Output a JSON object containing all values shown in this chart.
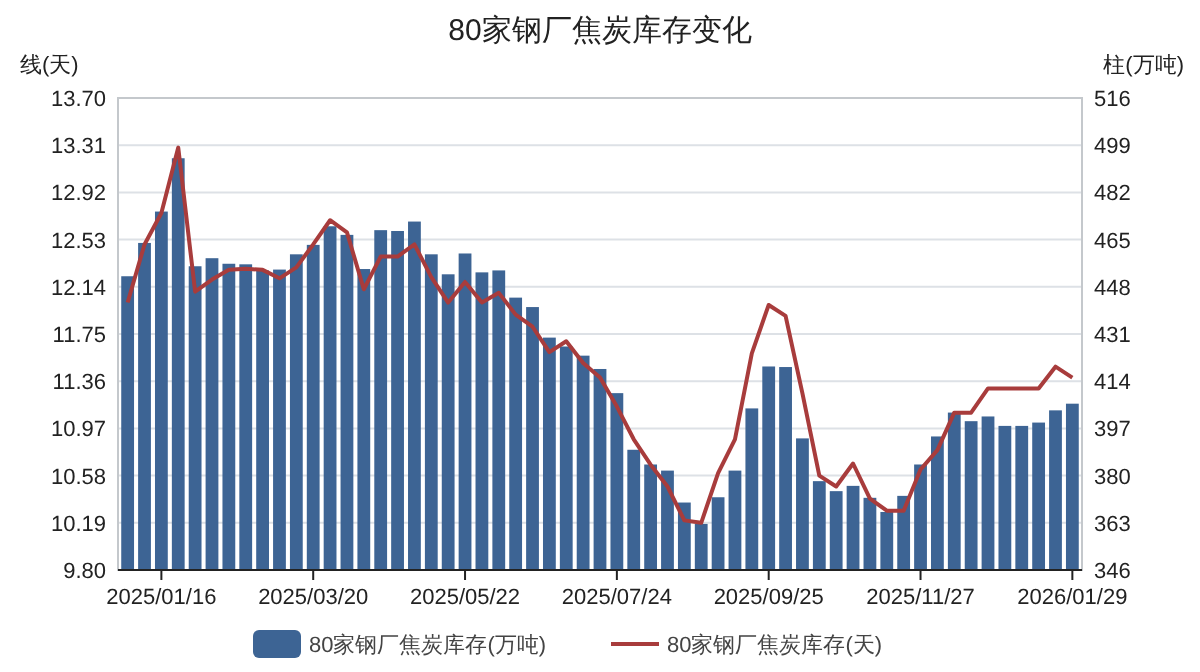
{
  "chart_data": {
    "type": "bar",
    "title": "80家钢厂焦炭库存变化",
    "ylabel": "线(天)",
    "y2label": "柱(万吨)",
    "x": [
      "2025-01-02",
      "2025-01-09",
      "2025-01-16",
      "2025-01-23",
      "2025-01-30",
      "2025-02-06",
      "2025-02-13",
      "2025-02-20",
      "2025-02-27",
      "2025-03-06",
      "2025-03-13",
      "2025-03-20",
      "2025-03-27",
      "2025-04-03",
      "2025-04-10",
      "2025-04-17",
      "2025-04-24",
      "2025-05-01",
      "2025-05-08",
      "2025-05-15",
      "2025-05-22",
      "2025-05-29",
      "2025-06-05",
      "2025-06-12",
      "2025-06-19",
      "2025-06-26",
      "2025-07-03",
      "2025-07-10",
      "2025-07-17",
      "2025-07-24",
      "2025-07-31",
      "2025-08-07",
      "2025-08-14",
      "2025-08-21",
      "2025-08-28",
      "2025-09-04",
      "2025-09-11",
      "2025-09-18",
      "2025-09-25",
      "2025-10-02",
      "2025-10-09",
      "2025-10-16",
      "2025-10-23",
      "2025-10-30",
      "2025-11-06",
      "2025-11-13",
      "2025-11-20",
      "2025-11-27",
      "2025-12-04",
      "2025-12-11",
      "2025-12-18",
      "2025-12-25",
      "2026-01-01",
      "2026-01-08",
      "2026-01-15",
      "2026-01-22",
      "2026-01-29"
    ],
    "series": [
      {
        "name": "80家钢厂焦炭库存(万吨)",
        "axis": "y2",
        "color": "#3d6494",
        "values": [
          451.8,
          463.8,
          475.1,
          494.3,
          455.4,
          458.3,
          456.3,
          456.1,
          453.9,
          454.2,
          459.7,
          463.1,
          469.8,
          466.7,
          454.4,
          468.4,
          468.1,
          471.5,
          459.7,
          452.5,
          460.0,
          453.2,
          453.9,
          444.1,
          440.7,
          429.7,
          426.5,
          423.2,
          418.4,
          409.7,
          389.3,
          384.0,
          381.8,
          370.3,
          362.6,
          372.2,
          381.8,
          404.2,
          419.3,
          419.1,
          393.4,
          378.0,
          374.4,
          376.3,
          372.0,
          366.9,
          372.7,
          384.0,
          394.1,
          402.7,
          399.6,
          401.3,
          397.9,
          397.9,
          399.1,
          403.5,
          405.9
        ]
      },
      {
        "name": "80家钢厂焦炭库存(天)",
        "type": "line",
        "axis": "y",
        "color": "#a83c3c",
        "values": [
          12.01,
          12.49,
          12.75,
          13.29,
          12.1,
          12.2,
          12.28,
          12.29,
          12.28,
          12.21,
          12.3,
          12.49,
          12.69,
          12.59,
          12.12,
          12.39,
          12.39,
          12.49,
          12.22,
          12.01,
          12.18,
          12.01,
          12.09,
          11.91,
          11.81,
          11.6,
          11.69,
          11.51,
          11.39,
          11.15,
          10.88,
          10.67,
          10.49,
          10.21,
          10.19,
          10.6,
          10.88,
          11.59,
          11.99,
          11.9,
          11.26,
          10.58,
          10.49,
          10.68,
          10.39,
          10.29,
          10.29,
          10.63,
          10.79,
          11.1,
          11.1,
          11.3,
          11.3,
          11.3,
          11.3,
          11.48,
          11.39
        ]
      }
    ],
    "xlim": [
      "2024-12-29",
      "2026-02-02"
    ],
    "xticks": [
      {
        "value": "2025-01-16",
        "label": "2025/01/16"
      },
      {
        "value": "2025-03-20",
        "label": "2025/03/20"
      },
      {
        "value": "2025-05-22",
        "label": "2025/05/22"
      },
      {
        "value": "2025-07-24",
        "label": "2025/07/24"
      },
      {
        "value": "2025-09-25",
        "label": "2025/09/25"
      },
      {
        "value": "2025-11-27",
        "label": "2025/11/27"
      },
      {
        "value": "2026-01-29",
        "label": "2026/01/29"
      }
    ],
    "ylim": [
      9.8,
      13.7
    ],
    "yticks": [
      {
        "value": 9.8,
        "label": "9.80"
      },
      10.19,
      10.58,
      10.97,
      11.36,
      11.75,
      12.14,
      12.53,
      12.92,
      13.31,
      {
        "value": 13.7,
        "label": "13.70"
      }
    ],
    "y2lim": [
      346,
      516
    ],
    "y2ticks": [
      346,
      363,
      380,
      397,
      414,
      431,
      448,
      465,
      482,
      499,
      516
    ],
    "grid": "y",
    "legend": "bottom",
    "marker": "none",
    "line_style": "solid"
  }
}
